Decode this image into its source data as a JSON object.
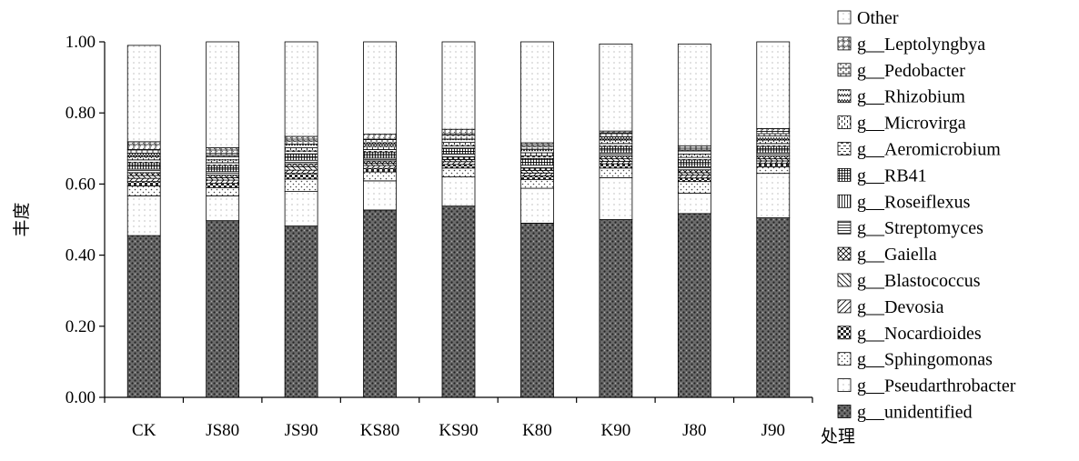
{
  "chart_data": {
    "type": "bar",
    "stacked": true,
    "normalized": true,
    "xlabel": "处理",
    "ylabel": "丰度",
    "ylim": [
      0,
      1.0
    ],
    "yticks": [
      "0.00",
      "0.20",
      "0.40",
      "0.60",
      "0.80",
      "1.00"
    ],
    "legend_position": "right",
    "categories": [
      "CK",
      "JS80",
      "JS90",
      "KS80",
      "KS90",
      "K80",
      "K90",
      "J80",
      "J90"
    ],
    "series": [
      {
        "name": "g__unidentified",
        "values": [
          0.455,
          0.497,
          0.482,
          0.527,
          0.538,
          0.49,
          0.5,
          0.517,
          0.505
        ]
      },
      {
        "name": "g__Pseudarthrobacter",
        "values": [
          0.112,
          0.07,
          0.097,
          0.082,
          0.082,
          0.098,
          0.118,
          0.057,
          0.125
        ]
      },
      {
        "name": "g__Sphingomonas",
        "values": [
          0.028,
          0.023,
          0.035,
          0.025,
          0.025,
          0.025,
          0.027,
          0.033,
          0.018
        ]
      },
      {
        "name": "g__Nocardioides",
        "values": [
          0.012,
          0.012,
          0.016,
          0.01,
          0.01,
          0.01,
          0.012,
          0.01,
          0.01
        ]
      },
      {
        "name": "g__Devosia",
        "values": [
          0.009,
          0.009,
          0.009,
          0.008,
          0.008,
          0.008,
          0.007,
          0.008,
          0.007
        ]
      },
      {
        "name": "g__Blastococcus",
        "values": [
          0.008,
          0.007,
          0.01,
          0.006,
          0.006,
          0.007,
          0.007,
          0.007,
          0.006
        ]
      },
      {
        "name": "g__Gaiella",
        "values": [
          0.008,
          0.007,
          0.008,
          0.007,
          0.007,
          0.007,
          0.008,
          0.008,
          0.008
        ]
      },
      {
        "name": "g__Streptomyces",
        "values": [
          0.01,
          0.01,
          0.01,
          0.008,
          0.009,
          0.008,
          0.009,
          0.009,
          0.009
        ]
      },
      {
        "name": "g__Roseiflexus",
        "values": [
          0.008,
          0.007,
          0.008,
          0.007,
          0.007,
          0.008,
          0.008,
          0.008,
          0.008
        ]
      },
      {
        "name": "g__RB41",
        "values": [
          0.01,
          0.01,
          0.01,
          0.01,
          0.009,
          0.011,
          0.01,
          0.011,
          0.01
        ]
      },
      {
        "name": "g__Aeromicrobium",
        "values": [
          0.008,
          0.008,
          0.008,
          0.007,
          0.007,
          0.007,
          0.008,
          0.007,
          0.008
        ]
      },
      {
        "name": "g__Microvirga",
        "values": [
          0.009,
          0.008,
          0.009,
          0.009,
          0.009,
          0.009,
          0.01,
          0.009,
          0.01
        ]
      },
      {
        "name": "g__Rhizobium",
        "values": [
          0.01,
          0.009,
          0.01,
          0.01,
          0.009,
          0.01,
          0.009,
          0.009,
          0.011
        ]
      },
      {
        "name": "g__Pedobacter",
        "values": [
          0.01,
          0.009,
          0.009,
          0.009,
          0.012,
          0.008,
          0.011,
          0.008,
          0.013
        ]
      },
      {
        "name": "g__Leptolyngbya",
        "values": [
          0.022,
          0.016,
          0.013,
          0.015,
          0.016,
          0.01,
          0.005,
          0.006,
          0.008
        ]
      },
      {
        "name": "Other",
        "values": [
          0.271,
          0.298,
          0.266,
          0.26,
          0.246,
          0.284,
          0.245,
          0.287,
          0.244
        ]
      }
    ]
  }
}
